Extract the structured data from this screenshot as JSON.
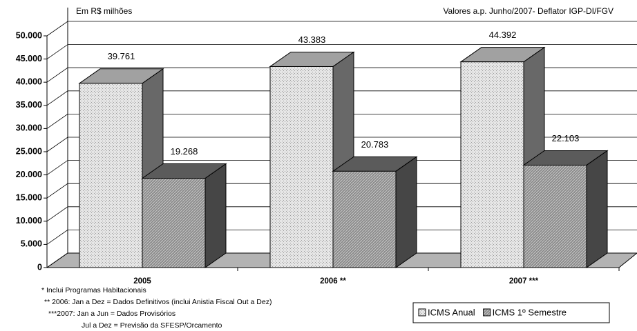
{
  "chart_data": {
    "type": "bar3d",
    "unit_note": "Em R$ milhões",
    "subtitle": "Valores a.p. Junho/2007- Deflator IGP-DI/FGV",
    "categories": [
      "2005",
      "2006 **",
      "2007 ***"
    ],
    "series": [
      {
        "name": "ICMS Anual",
        "color": "#e6e6e6",
        "values": [
          39761,
          43383,
          44392
        ],
        "value_labels": [
          "39.761",
          "43.383",
          "44.392"
        ]
      },
      {
        "name": "ICMS 1º Semestre",
        "color": "#8c8c8c",
        "values": [
          19268,
          20783,
          22103
        ],
        "value_labels": [
          "19.268",
          "20.783",
          "22.103"
        ]
      }
    ],
    "ylim": [
      0,
      50000
    ],
    "yticks": [
      0,
      {
        "value": 5000,
        "label": "5.000"
      },
      {
        "value": 10000,
        "label": "10.000"
      },
      {
        "value": 15000,
        "label": "15.000"
      },
      {
        "value": 20000,
        "label": "20.000"
      },
      {
        "value": 25000,
        "label": "25.000"
      },
      {
        "value": 30000,
        "label": "30.000"
      },
      {
        "value": 35000,
        "label": "35.000"
      },
      {
        "value": 40000,
        "label": "40.000"
      },
      {
        "value": 45000,
        "label": "45.000"
      },
      {
        "value": 50000,
        "label": "50.000"
      }
    ],
    "grid": true,
    "legend": "bottom-right",
    "notes": [
      "* Inclui Programas Habitacionais",
      "** 2006:  Jan a Dez  =  Dados Definitivos (inclui Anistia Fiscal Out a Dez)",
      "***2007:  Jan a Jun = Dados Provisórios",
      "Jul a Dez = Previsão da SFESP/Orcamento"
    ]
  }
}
